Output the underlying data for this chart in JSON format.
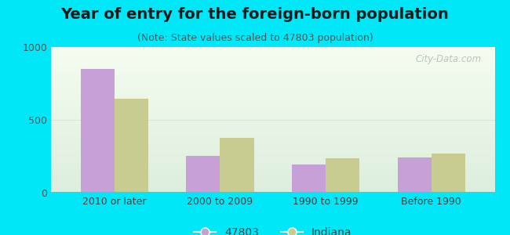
{
  "title": "Year of entry for the foreign-born population",
  "subtitle": "(Note: State values scaled to 47803 population)",
  "categories": [
    "2010 or later",
    "2000 to 2009",
    "1990 to 1999",
    "Before 1990"
  ],
  "values_47803": [
    850,
    255,
    195,
    240
  ],
  "values_indiana": [
    645,
    375,
    235,
    270
  ],
  "bar_color_47803": "#c8a0d8",
  "bar_color_indiana": "#c8cc90",
  "background_outer": "#00e8f8",
  "background_inner": "#eaf5e8",
  "ylim": [
    0,
    1000
  ],
  "yticks": [
    0,
    500,
    1000
  ],
  "legend_labels": [
    "47803",
    "Indiana"
  ],
  "title_fontsize": 14,
  "subtitle_fontsize": 9,
  "tick_fontsize": 9,
  "legend_fontsize": 10,
  "watermark_text": "City-Data.com",
  "bar_width": 0.32
}
